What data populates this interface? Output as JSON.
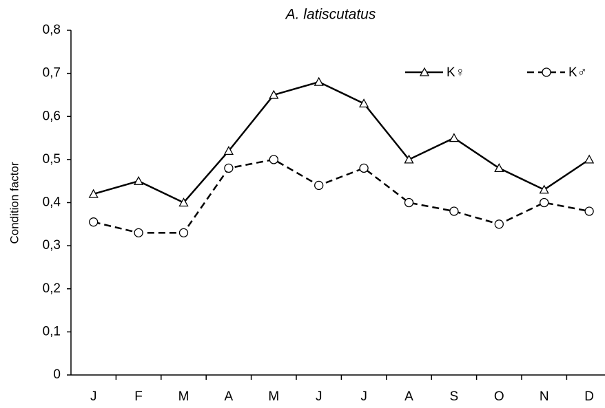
{
  "chart_data": {
    "type": "line",
    "title": "A. latiscutatus",
    "ylabel": "Condition factor",
    "categories": [
      "J",
      "F",
      "M",
      "A",
      "M",
      "J",
      "J",
      "A",
      "S",
      "O",
      "N",
      "D"
    ],
    "series": [
      {
        "name": "K♀",
        "color": "#000000",
        "marker": "triangle",
        "linestyle": "solid",
        "values": [
          0.42,
          0.45,
          0.4,
          0.52,
          0.65,
          0.68,
          0.63,
          0.5,
          0.55,
          0.48,
          0.43,
          0.5
        ]
      },
      {
        "name": "K♂",
        "color": "#000000",
        "marker": "circle",
        "linestyle": "dashed",
        "values": [
          0.355,
          0.33,
          0.33,
          0.48,
          0.5,
          0.44,
          0.48,
          0.4,
          0.38,
          0.35,
          0.4,
          0.38
        ]
      }
    ],
    "ylim": [
      0,
      0.8
    ],
    "yticks": [
      0,
      {
        "value": 0.1,
        "label": "0,1"
      },
      {
        "value": 0.2,
        "label": "0,2"
      },
      {
        "value": 0.3,
        "label": "0,3"
      },
      {
        "value": 0.4,
        "label": "0,4"
      },
      {
        "value": 0.5,
        "label": "0,5"
      },
      {
        "value": 0.6,
        "label": "0,6"
      },
      {
        "value": 0.7,
        "label": "0,7"
      },
      {
        "value": 0.8,
        "label": "0,8"
      }
    ],
    "grid": false,
    "legend": "upper right"
  }
}
